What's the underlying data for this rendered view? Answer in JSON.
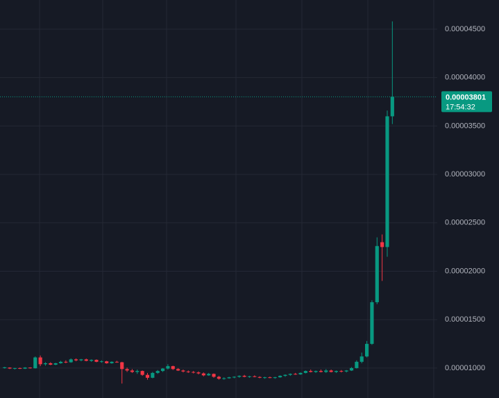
{
  "chart_data": {
    "type": "candlestick",
    "series": [
      {
        "color": "#089981",
        "down_color": "#f23645",
        "open": [
          1e-05,
          1.005e-05,
          9.95e-06,
          1e-05,
          9.94e-06,
          1.005e-05,
          9.98e-06,
          1.11e-05,
          1.04e-05,
          1.05e-05,
          1.035e-05,
          1.05e-05,
          1.065e-05,
          1.06e-05,
          1.09e-05,
          1.08e-05,
          1.09e-05,
          1.075e-05,
          1.085e-05,
          1.065e-05,
          1.07e-05,
          1.05e-05,
          1.065e-05,
          1.06e-05,
          9.9e-06,
          9.75e-06,
          9.6e-06,
          9.7e-06,
          9.3e-06,
          9e-06,
          9.5e-06,
          9.7e-06,
          9.95e-06,
          1.02e-05,
          9.9e-06,
          9.75e-06,
          9.65e-06,
          9.6e-06,
          9.55e-06,
          9.45e-06,
          9.25e-06,
          9.4e-06,
          9.1e-06,
          8.9e-06,
          8.95e-06,
          9.05e-06,
          9.1e-06,
          9.2e-06,
          9.1e-06,
          9.15e-06,
          9.08e-06,
          9e-06,
          9.05e-06,
          8.98e-06,
          9.05e-06,
          9.2e-06,
          9.3e-06,
          9.4e-06,
          9.35e-06,
          9.5e-06,
          9.7e-06,
          9.6e-06,
          9.7e-06,
          9.6e-06,
          9.75e-06,
          9.6e-06,
          9.7e-06,
          9.65e-06,
          9.75e-06,
          1e-05,
          1.065e-05,
          1.12e-05,
          1.25e-05,
          1.68e-05,
          2.3e-05,
          2.25e-05,
          3.6e-05
        ],
        "high": [
          1.012e-05,
          1.008e-05,
          1.002e-05,
          1.005e-05,
          1.01e-05,
          1.008e-05,
          1.12e-05,
          1.13e-05,
          1.06e-05,
          1.06e-05,
          1.055e-05,
          1.075e-05,
          1.08e-05,
          1.1e-05,
          1.1e-05,
          1.095e-05,
          1.098e-05,
          1.09e-05,
          1.09e-05,
          1.08e-05,
          1.075e-05,
          1.07e-05,
          1.075e-05,
          1.065e-05,
          1.005e-05,
          9.9e-06,
          9.85e-06,
          9.75e-06,
          9.5e-06,
          9.6e-06,
          9.8e-06,
          1e-05,
          1.04e-05,
          1.025e-05,
          1e-05,
          9.85e-06,
          9.75e-06,
          9.7e-06,
          9.65e-06,
          9.55e-06,
          9.5e-06,
          9.45e-06,
          9.2e-06,
          9.05e-06,
          9.1e-06,
          9.15e-06,
          9.25e-06,
          9.3e-06,
          9.2e-06,
          9.25e-06,
          9.15e-06,
          9.1e-06,
          9.12e-06,
          9.1e-06,
          9.25e-06,
          9.35e-06,
          9.45e-06,
          9.5e-06,
          9.55e-06,
          9.75e-06,
          9.85e-06,
          9.75e-06,
          9.85e-06,
          9.9e-06,
          9.85e-06,
          9.75e-06,
          9.8e-06,
          9.8e-06,
          1.01e-05,
          1.08e-05,
          1.16e-05,
          1.28e-05,
          1.7e-05,
          2.35e-05,
          2.38e-05,
          3.66e-05,
          4.58e-05
        ],
        "low": [
          9.95e-06,
          9.9e-06,
          9.85e-06,
          9.9e-06,
          9.9e-06,
          9.95e-06,
          9.95e-06,
          1.02e-05,
          1.025e-05,
          1.03e-05,
          1.03e-05,
          1.045e-05,
          1.05e-05,
          1.055e-05,
          1.07e-05,
          1.07e-05,
          1.07e-05,
          1.065e-05,
          1.06e-05,
          1.055e-05,
          1.045e-05,
          1.045e-05,
          1.055e-05,
          8.4e-06,
          9.6e-06,
          9.5e-06,
          9.4e-06,
          9.2e-06,
          8.8e-06,
          8.95e-06,
          9.4e-06,
          9.6e-06,
          9.85e-06,
          9.8e-06,
          9.7e-06,
          9.55e-06,
          9.5e-06,
          9.45e-06,
          9.35e-06,
          9.15e-06,
          9.2e-06,
          9e-06,
          8.8e-06,
          8.8e-06,
          8.9e-06,
          8.95e-06,
          9e-06,
          9.05e-06,
          9e-06,
          9.05e-06,
          8.95e-06,
          8.9e-06,
          8.95e-06,
          8.9e-06,
          9e-06,
          9.1e-06,
          9.2e-06,
          9.3e-06,
          9.3e-06,
          9.45e-06,
          9.55e-06,
          9.5e-06,
          9.55e-06,
          9.5e-06,
          9.55e-06,
          9.5e-06,
          9.55e-06,
          9.55e-06,
          9.7e-06,
          9.95e-06,
          1.05e-05,
          1.11e-05,
          1.24e-05,
          1.66e-05,
          1.9e-05,
          2.15e-05,
          3.52e-05
        ],
        "close": [
          1.008e-05,
          9.95e-06,
          1e-05,
          9.94e-06,
          1.005e-05,
          9.98e-06,
          1.11e-05,
          1.04e-05,
          1.05e-05,
          1.035e-05,
          1.05e-05,
          1.065e-05,
          1.06e-05,
          1.09e-05,
          1.08e-05,
          1.09e-05,
          1.075e-05,
          1.085e-05,
          1.065e-05,
          1.07e-05,
          1.05e-05,
          1.065e-05,
          1.06e-05,
          9.9e-06,
          9.75e-06,
          9.6e-06,
          9.7e-06,
          9.3e-06,
          9e-06,
          9.5e-06,
          9.7e-06,
          9.95e-06,
          1.02e-05,
          9.9e-06,
          9.75e-06,
          9.65e-06,
          9.6e-06,
          9.55e-06,
          9.45e-06,
          9.25e-06,
          9.4e-06,
          9.1e-06,
          8.9e-06,
          8.95e-06,
          9.05e-06,
          9.1e-06,
          9.2e-06,
          9.1e-06,
          9.15e-06,
          9.08e-06,
          9e-06,
          9.05e-06,
          8.98e-06,
          9.05e-06,
          9.2e-06,
          9.3e-06,
          9.4e-06,
          9.35e-06,
          9.5e-06,
          9.7e-06,
          9.6e-06,
          9.7e-06,
          9.6e-06,
          9.75e-06,
          9.6e-06,
          9.7e-06,
          9.65e-06,
          9.75e-06,
          1e-05,
          1.065e-05,
          1.12e-05,
          1.25e-05,
          1.68e-05,
          2.26e-05,
          2.25e-05,
          3.6e-05,
          3.801e-05
        ]
      }
    ],
    "ylim": [
      6.91e-06,
      4.801e-05
    ],
    "yticks": [
      {
        "value": 1e-05,
        "label": "0.00001000"
      },
      {
        "value": 1.5e-05,
        "label": "0.00001500"
      },
      {
        "value": 2e-05,
        "label": "0.00002000"
      },
      {
        "value": 2.5e-05,
        "label": "0.00002500"
      },
      {
        "value": 3e-05,
        "label": "0.00003000"
      },
      {
        "value": 3.5e-05,
        "label": "0.00003500"
      },
      {
        "value": 4e-05,
        "label": "0.00004000"
      },
      {
        "value": 4.5e-05,
        "label": "0.00004500"
      }
    ],
    "grid": true,
    "last_price": {
      "value": 3.801e-05,
      "label": "0.00003801"
    },
    "countdown": "17:54:32"
  }
}
